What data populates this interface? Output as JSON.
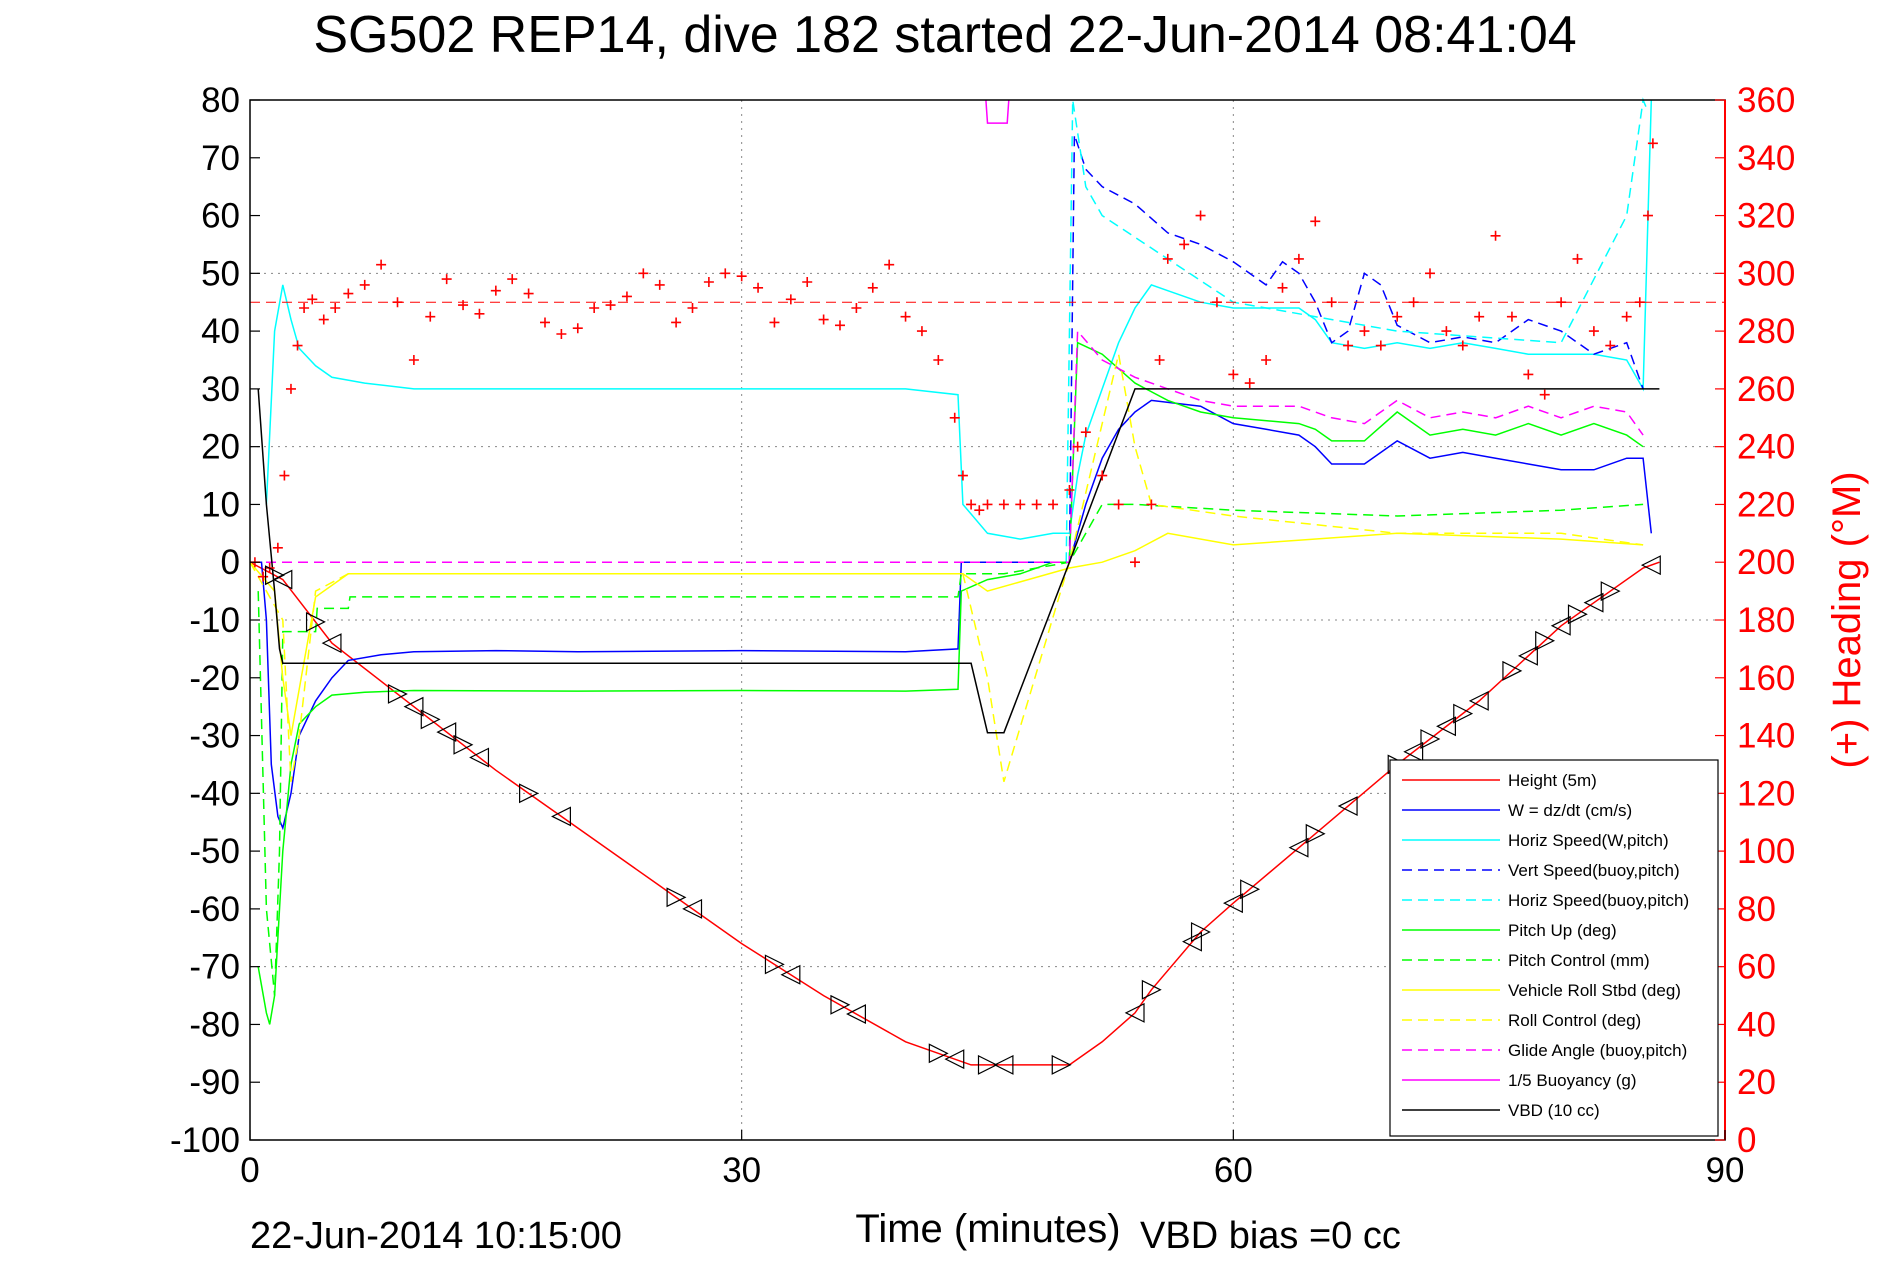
{
  "chart_data": {
    "type": "line",
    "title": "SG502 REP14, dive 182 started 22-Jun-2014 08:41:04",
    "xlabel": "Time (minutes)",
    "ylabel": "",
    "ylabel_right": "(+) Heading (°M)",
    "footer_left": "22-Jun-2014 10:15:00",
    "footer_right": "VBD bias =0 cc",
    "xlim": [
      0,
      90
    ],
    "ylim": [
      -100,
      80
    ],
    "ylim_right": [
      0,
      360
    ],
    "x_ticks": [
      0,
      30,
      60,
      90
    ],
    "y_ticks": [
      80,
      70,
      60,
      50,
      40,
      30,
      20,
      10,
      0,
      -10,
      -20,
      -30,
      -40,
      -50,
      -60,
      -70,
      -80,
      -90,
      -100
    ],
    "y_ticks_right": [
      360,
      340,
      320,
      300,
      280,
      260,
      240,
      220,
      200,
      180,
      160,
      140,
      120,
      100,
      80,
      60,
      40,
      20,
      0
    ],
    "grid": true,
    "legend_position": "bottom-right",
    "colors": {
      "red": "#ff0000",
      "blue": "#0000ff",
      "cyan": "#00ffff",
      "green": "#00ff00",
      "yellow": "#ffff00",
      "magenta": "#ff00ff",
      "black": "#000000"
    },
    "series": [
      {
        "name": "Height (5m)",
        "color": "#ff0000",
        "dash": "solid",
        "x": [
          0,
          2,
          5,
          10,
          15,
          20,
          25,
          30,
          35,
          40,
          44,
          45,
          47,
          50,
          52,
          54,
          55,
          58,
          60,
          65,
          70,
          75,
          80,
          85,
          86
        ],
        "y": [
          0,
          -3,
          -14,
          -25,
          -36,
          -46,
          -56,
          -66,
          -75,
          -83,
          -87,
          -87,
          -87,
          -87,
          -83,
          -78,
          -74,
          -64,
          -59,
          -47,
          -35,
          -24,
          -11,
          -1,
          0
        ]
      },
      {
        "name": "W = dz/dt (cm/s)",
        "color": "#0000ff",
        "dash": "solid",
        "x": [
          0,
          0.7,
          1,
          1.3,
          1.7,
          2.0,
          2.5,
          3,
          4,
          5,
          6,
          8,
          10,
          15,
          20,
          30,
          40,
          43.2,
          43.4,
          50,
          51,
          52,
          53,
          54,
          55,
          58,
          60,
          62,
          64,
          65,
          66,
          68,
          70,
          72,
          74,
          76,
          78,
          80,
          82,
          84,
          85,
          85.5
        ],
        "y": [
          0,
          0,
          -10,
          -35,
          -44,
          -46,
          -40,
          -30,
          -24,
          -20,
          -17,
          -16,
          -15.5,
          -15.3,
          -15.5,
          -15.3,
          -15.5,
          -15,
          0,
          0,
          10,
          18,
          23,
          26,
          28,
          27,
          24,
          23,
          22,
          20,
          17,
          17,
          21,
          18,
          19,
          18,
          17,
          16,
          16,
          18,
          18,
          5
        ]
      },
      {
        "name": "Horiz Speed(W,pitch)",
        "color": "#00ffff",
        "dash": "solid",
        "x": [
          1,
          1.5,
          2,
          2.5,
          3,
          4,
          5,
          7,
          10,
          20,
          30,
          40,
          43.2,
          43.5,
          45,
          47,
          49,
          50,
          50.5,
          51,
          52,
          53,
          54,
          55,
          56,
          58,
          60,
          64,
          65,
          66,
          68,
          70,
          72,
          74,
          76,
          78,
          80,
          82,
          84,
          85,
          85.5
        ],
        "y": [
          10,
          40,
          48,
          42,
          37,
          34,
          32,
          31,
          30,
          30,
          30,
          30,
          29,
          10,
          5,
          4,
          5,
          5,
          15,
          22,
          30,
          38,
          44,
          48,
          47,
          45,
          44,
          44,
          42,
          38,
          37,
          38,
          37,
          38,
          37,
          36,
          36,
          36,
          35,
          30,
          80
        ]
      },
      {
        "name": "Vert Speed(buoy,pitch)",
        "color": "#0000ff",
        "dash": "dashed",
        "x": [
          50,
          50.3,
          51,
          52,
          54,
          56,
          58,
          60,
          62,
          63,
          64,
          65,
          66,
          67,
          68,
          69,
          70,
          72,
          74,
          76,
          78,
          80,
          82,
          84,
          85
        ],
        "y": [
          0,
          74,
          68,
          65,
          62,
          57,
          55,
          52,
          48,
          52,
          50,
          45,
          38,
          40,
          50,
          48,
          41,
          38,
          39,
          38,
          42,
          40,
          36,
          38,
          30
        ]
      },
      {
        "name": "Horiz Speed(buoy,pitch)",
        "color": "#00ffff",
        "dash": "dashed",
        "x": [
          49.8,
          50.2,
          51,
          52,
          60,
          70,
          80,
          84,
          85,
          85.3
        ],
        "y": [
          0,
          80,
          65,
          60,
          45,
          40,
          38,
          60,
          80,
          78
        ]
      },
      {
        "name": "Pitch Up (deg)",
        "color": "#00ff00",
        "dash": "solid",
        "x": [
          0.5,
          1,
          1.2,
          1.5,
          2,
          2.5,
          3,
          4,
          5,
          7,
          10,
          20,
          30,
          40,
          43.2,
          43.4,
          45,
          47,
          49,
          50,
          50.5,
          52,
          54,
          56,
          58,
          60,
          64,
          65,
          66,
          68,
          70,
          72,
          74,
          76,
          78,
          80,
          82,
          84,
          85
        ],
        "y": [
          -70,
          -78,
          -80,
          -75,
          -50,
          -35,
          -28,
          -25,
          -23,
          -22.5,
          -22.2,
          -22.3,
          -22.2,
          -22.3,
          -22,
          -5,
          -3,
          -2,
          0,
          0,
          38,
          36,
          31,
          28,
          26,
          25,
          24,
          23,
          21,
          21,
          26,
          22,
          23,
          22,
          24,
          22,
          24,
          22,
          20
        ]
      },
      {
        "name": "Pitch Control (mm)",
        "color": "#00ff00",
        "dash": "dashed",
        "x": [
          0.5,
          1,
          1.5,
          1.8,
          2,
          4,
          4.1,
          6,
          6.1,
          43.2,
          43.4,
          46,
          50,
          52,
          54,
          60,
          70,
          80,
          85
        ],
        "y": [
          -5,
          -60,
          -75,
          -50,
          -12,
          -12,
          -8,
          -8,
          -6,
          -6,
          -2,
          -2,
          0,
          10,
          10,
          9,
          8,
          9,
          10
        ]
      },
      {
        "name": "Vehicle Roll Stbd (deg)",
        "color": "#ffff00",
        "dash": "solid",
        "x": [
          0,
          1.5,
          2,
          2.5,
          3,
          4,
          6,
          8,
          10,
          20,
          30,
          40,
          43.5,
          45,
          50,
          52,
          54,
          56,
          60,
          70,
          80,
          85
        ],
        "y": [
          0,
          -5,
          -20,
          -30,
          -22,
          -6,
          -2,
          -2,
          -2,
          -2,
          -2,
          -2,
          -2,
          -5,
          -1,
          0,
          2,
          5,
          3,
          5,
          4,
          3
        ]
      },
      {
        "name": "Roll Control (deg)",
        "color": "#ffff00",
        "dash": "dashed",
        "x": [
          0,
          2,
          2.5,
          3,
          4,
          6,
          10,
          20,
          30,
          40,
          43.5,
          45,
          46,
          50,
          53,
          54,
          55,
          60,
          70,
          80,
          85
        ],
        "y": [
          0,
          -10,
          -38,
          -30,
          -5,
          -2,
          -2,
          -2,
          -2,
          -2,
          -2,
          -20,
          -38,
          0,
          36,
          20,
          10,
          8,
          5,
          5,
          3
        ]
      },
      {
        "name": "Glide Angle (buoy,pitch)",
        "color": "#ff00ff",
        "dash": "dashed",
        "x": [
          0,
          10,
          20,
          30,
          40,
          43.2,
          50,
          50.5,
          52,
          54,
          56,
          58,
          60,
          64,
          66,
          68,
          70,
          72,
          74,
          76,
          78,
          80,
          82,
          84,
          85
        ],
        "y": [
          0,
          0,
          0,
          0,
          0,
          0,
          0,
          40,
          35,
          32,
          30,
          28,
          27,
          27,
          25,
          24,
          28,
          25,
          26,
          25,
          27,
          25,
          27,
          26,
          22
        ]
      },
      {
        "name": "1/5 Buoyancy (g)",
        "color": "#ff00ff",
        "dash": "solid",
        "x": [
          44.9,
          45.0,
          46.2,
          46.3
        ],
        "y": [
          80,
          76,
          76,
          80
        ]
      },
      {
        "name": "VBD (10 cc)",
        "color": "#000000",
        "dash": "solid",
        "x": [
          0.5,
          1,
          1.5,
          1.8,
          2,
          43.2,
          43.3,
          44,
          45,
          46,
          50,
          54,
          54.1,
          70,
          86
        ],
        "y": [
          30,
          10,
          -5,
          -15,
          -17.5,
          -17.5,
          -17.5,
          -17.5,
          -29.5,
          -29.5,
          0,
          30,
          30,
          30,
          30
        ]
      }
    ],
    "heading_scatter": {
      "name": "(+) Heading",
      "color": "#ff0000",
      "marker": "+",
      "x": [
        0.3,
        0.8,
        1.2,
        1.7,
        2.1,
        2.5,
        2.9,
        3.3,
        3.8,
        4.5,
        5.2,
        6.0,
        7.0,
        8.0,
        9.0,
        10.0,
        11.0,
        12.0,
        13.0,
        14.0,
        15.0,
        16.0,
        17.0,
        18.0,
        19.0,
        20.0,
        21.0,
        22.0,
        23.0,
        24.0,
        25.0,
        26.0,
        27.0,
        28.0,
        29.0,
        30.0,
        31.0,
        32.0,
        33.0,
        34.0,
        35.0,
        36.0,
        37.0,
        38.0,
        39.0,
        40.0,
        41.0,
        42.0,
        43.0,
        43.5,
        44.0,
        44.5,
        45.0,
        46.0,
        47.0,
        48.0,
        49.0,
        50.0,
        50.5,
        51.0,
        52.0,
        53.0,
        54.0,
        55.0,
        55.5,
        56.0,
        57.0,
        58.0,
        59.0,
        60.0,
        61.0,
        62.0,
        63.0,
        64.0,
        65.0,
        66.0,
        67.0,
        68.0,
        69.0,
        70.0,
        71.0,
        72.0,
        73.0,
        74.0,
        75.0,
        76.0,
        77.0,
        78.0,
        79.0,
        80.0,
        81.0,
        82.0,
        83.0,
        84.0,
        84.8,
        85.3,
        85.6
      ],
      "y": [
        200,
        195,
        198,
        205,
        230,
        260,
        275,
        288,
        291,
        284,
        288,
        293,
        296,
        303,
        290,
        270,
        285,
        298,
        289,
        286,
        294,
        298,
        293,
        283,
        279,
        281,
        288,
        289,
        292,
        300,
        296,
        283,
        288,
        297,
        300,
        299,
        295,
        283,
        291,
        297,
        284,
        282,
        288,
        295,
        303,
        285,
        280,
        270,
        250,
        230,
        220,
        218,
        220,
        220,
        220,
        220,
        220,
        225,
        240,
        245,
        230,
        220,
        200,
        220,
        270,
        305,
        310,
        320,
        290,
        265,
        262,
        270,
        295,
        305,
        318,
        290,
        275,
        280,
        275,
        285,
        290,
        300,
        280,
        275,
        285,
        313,
        285,
        265,
        258,
        290,
        305,
        280,
        275,
        285,
        290,
        320,
        345
      ]
    },
    "heading_mean": 290,
    "triangle_markers_x": [
      1.5,
      2.0,
      4.0,
      5.0,
      9.0,
      10.0,
      11.0,
      12.0,
      13.0,
      14.0,
      17.0,
      19.0,
      26.0,
      27.0,
      32.0,
      33.0,
      36.0,
      37.0,
      42.0,
      43.0,
      45.0,
      46.0,
      49.5,
      54.0,
      55.0,
      57.5,
      58.0,
      60.0,
      61.0,
      64.0,
      65.0,
      67.0,
      70.0,
      71.0,
      72.0,
      73.0,
      74.0,
      75.0,
      77.0,
      78.0,
      79.0,
      80.0,
      81.0,
      82.0,
      83.0,
      85.5
    ]
  }
}
